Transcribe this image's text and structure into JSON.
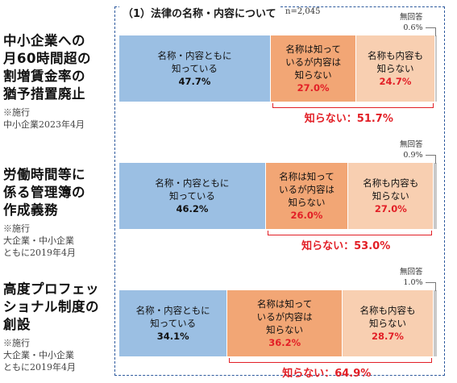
{
  "title": "（1）法律の名称・内容について",
  "n_label": "n=2,045",
  "na_label": "無回答",
  "items": [
    {
      "title_lines": [
        "中小企業への",
        "月60時間超の",
        "割増賃金率の",
        "猶予措置廃止"
      ],
      "note_lines": [
        "※施行",
        "中小企業2023年4月"
      ],
      "segments": [
        {
          "label": "名称・内容ともに\n知っている",
          "value": "47.7%"
        },
        {
          "label": "名称は知って\nいるが内容は\n知らない",
          "value": "27.0%"
        },
        {
          "label": "名称も内容も\n知らない",
          "value": "24.7%"
        }
      ],
      "na_value": "0.6%",
      "unknown_label": "知らない：51.7%"
    },
    {
      "title_lines": [
        "労働時間等に",
        "係る管理簿の",
        "作成義務"
      ],
      "note_lines": [
        "※施行",
        "大企業・中小企業",
        "ともに2019年4月"
      ],
      "segments": [
        {
          "label": "名称・内容ともに\n知っている",
          "value": "46.2%"
        },
        {
          "label": "名称は知って\nいるが内容は\n知らない",
          "value": "26.0%"
        },
        {
          "label": "名称も内容も\n知らない",
          "value": "27.0%"
        }
      ],
      "na_value": "0.9%",
      "unknown_label": "知らない：53.0%"
    },
    {
      "title_lines": [
        "高度プロフェッ",
        "ショナル制度の",
        "創設"
      ],
      "note_lines": [
        "※施行",
        "大企業・中小企業",
        "ともに2019年4月"
      ],
      "segments": [
        {
          "label": "名称・内容ともに\n知っている",
          "value": "34.1%"
        },
        {
          "label": "名称は知って\nいるが内容は\n知らない",
          "value": "36.2%"
        },
        {
          "label": "名称も内容も\n知らない",
          "value": "28.7%"
        }
      ],
      "na_value": "1.0%",
      "unknown_label": "知らない：64.9%"
    }
  ],
  "chart_data": {
    "type": "bar",
    "stacked": true,
    "orientation": "horizontal",
    "categories": [
      "中小企業への月60時間超の割増賃金率の猶予措置廃止",
      "労働時間等に係る管理簿の作成義務",
      "高度プロフェッショナル制度の創設"
    ],
    "series": [
      {
        "name": "名称・内容ともに知っている",
        "values": [
          47.7,
          46.2,
          34.1
        ]
      },
      {
        "name": "名称は知っているが内容は知らない",
        "values": [
          27.0,
          26.0,
          36.2
        ]
      },
      {
        "name": "名称も内容も知らない",
        "values": [
          24.7,
          27.0,
          28.7
        ]
      },
      {
        "name": "無回答",
        "values": [
          0.6,
          0.9,
          1.0
        ]
      }
    ],
    "unknown_totals": [
      51.7,
      53.0,
      64.9
    ],
    "colors": [
      "#9bbfe3",
      "#f2a675",
      "#f8cfb1",
      "#c9c9c9"
    ],
    "highlight_color": "#e21f26",
    "title": "（1）法律の名称・内容について",
    "n": "n=2,045"
  }
}
